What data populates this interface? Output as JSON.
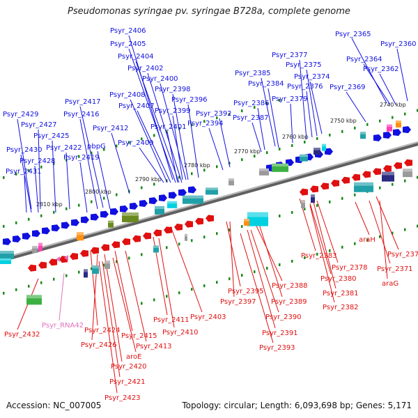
{
  "title": "Pseudomonas syringae pv. syringae B728a, complete genome",
  "footer": {
    "accession": "Accession: NC_007005",
    "summary": "Topology: circular; Length: 6,093,698 bp; Genes: 5,171"
  },
  "colors": {
    "forward_gene": "#1010e0",
    "reverse_gene": "#e01010",
    "rna_gene": "#e070c0",
    "cds_green": "#3cb043",
    "cds_cyan": "#00d0e0",
    "cds_teal": "#20a0a8",
    "cds_navy": "#2a2a80",
    "cds_orange": "#ff9010",
    "cds_gray": "#9a9a9a",
    "cds_olive": "#6a8a20",
    "cds_pink": "#ff40b0",
    "backbone": "#808080",
    "tick": "#1a8a1a"
  },
  "kbp_ticks": [
    "2740 kbp",
    "2750 kbp",
    "2760 kbp",
    "2770 kbp",
    "2780 kbp",
    "2790 kbp",
    "2800 kbp",
    "2810 kbp"
  ],
  "forward_labels": [
    "Psyr_2365",
    "Psyr_2360",
    "Psyr_2364",
    "Psyr_2362",
    "Psyr_2369",
    "Psyr_2377",
    "Psyr_2375",
    "Psyr_2374",
    "Psyr_2376",
    "Psyr_2379",
    "Psyr_2385",
    "Psyr_2384",
    "Psyr_2386",
    "Psyr_2387",
    "Psyr_2392",
    "Psyr_2394",
    "Psyr_2406",
    "Psyr_2405",
    "Psyr_2404",
    "Psyr_2402",
    "Psyr_2400",
    "Psyr_2398",
    "Psyr_2396",
    "Psyr_2399",
    "Psyr_2401",
    "Psyr_2408",
    "Psyr_2407",
    "Psyr_2412",
    "Psyr_2409",
    "Psyr_2417",
    "Psyr_2416",
    "Psyr_2429",
    "Psyr_2427",
    "Psyr_2425",
    "Psyr_2422",
    "pbpG",
    "Psyr_2430",
    "Psyr_2428",
    "Psyr_2419",
    "Psyr_2431"
  ],
  "reverse_labels": [
    "araH",
    "Psyr_2370",
    "Psyr_2371",
    "araG",
    "Psyr_2383",
    "Psyr_2378",
    "Psyr_2380",
    "Psyr_2381",
    "Psyr_2382",
    "Psyr_2388",
    "Psyr_2389",
    "Psyr_2395",
    "Psyr_2397",
    "Psyr_2390",
    "Psyr_2391",
    "Psyr_2393",
    "Psyr_2403",
    "Psyr_2411",
    "Psyr_2410",
    "Psyr_2415",
    "Psyr_2413",
    "Psyr_2424",
    "Psyr_2426",
    "aroE",
    "Psyr_2420",
    "Psyr_2421",
    "Psyr_2423",
    "Psyr_2432"
  ],
  "rna_labels": [
    "Psyr_RNA42"
  ]
}
